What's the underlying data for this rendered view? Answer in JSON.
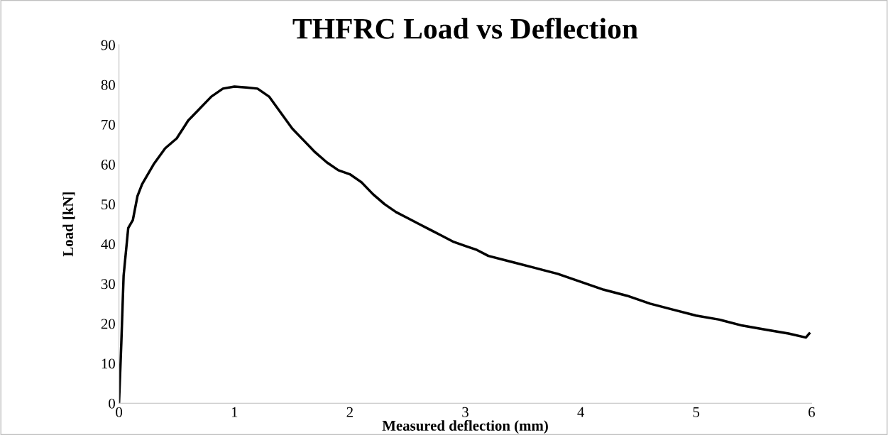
{
  "chart_data": {
    "type": "line",
    "title": "THFRC Load vs Deflection",
    "xlabel": "Measured deflection (mm)",
    "ylabel": "Load [kN]",
    "series": [
      {
        "color": "#000000",
        "x": [
          0,
          0.02,
          0.04,
          0.08,
          0.12,
          0.16,
          0.2,
          0.3,
          0.4,
          0.5,
          0.6,
          0.7,
          0.8,
          0.9,
          1.0,
          1.1,
          1.2,
          1.3,
          1.4,
          1.5,
          1.6,
          1.7,
          1.8,
          1.9,
          2.0,
          2.1,
          2.2,
          2.3,
          2.4,
          2.5,
          2.6,
          2.7,
          2.8,
          2.9,
          3.0,
          3.1,
          3.2,
          3.4,
          3.6,
          3.8,
          4.0,
          4.2,
          4.4,
          4.6,
          4.8,
          5.0,
          5.2,
          5.4,
          5.6,
          5.8,
          5.95,
          5.98
        ],
        "values": [
          0,
          15,
          32,
          44,
          46,
          52,
          55,
          60,
          64,
          66.5,
          71,
          74,
          77,
          79,
          79.5,
          79.3,
          79,
          77,
          73,
          69,
          66,
          63,
          60.5,
          58.5,
          57.5,
          55.5,
          52.5,
          50,
          48,
          46.5,
          45,
          43.5,
          42,
          40.5,
          39.5,
          38.5,
          37,
          35.5,
          34,
          32.5,
          30.5,
          28.5,
          27,
          25,
          23.5,
          22,
          21,
          19.5,
          18.5,
          17.5,
          16.5,
          17.5
        ]
      }
    ],
    "xlim": [
      0,
      6
    ],
    "xticks": [
      0,
      1,
      2,
      3,
      4,
      5,
      6
    ],
    "ylim": [
      0,
      90
    ],
    "yticks": [
      0,
      10,
      20,
      30,
      40,
      50,
      60,
      70,
      80,
      90
    ],
    "grid": false,
    "legend": false,
    "marker": "none",
    "line_style": "solid"
  }
}
